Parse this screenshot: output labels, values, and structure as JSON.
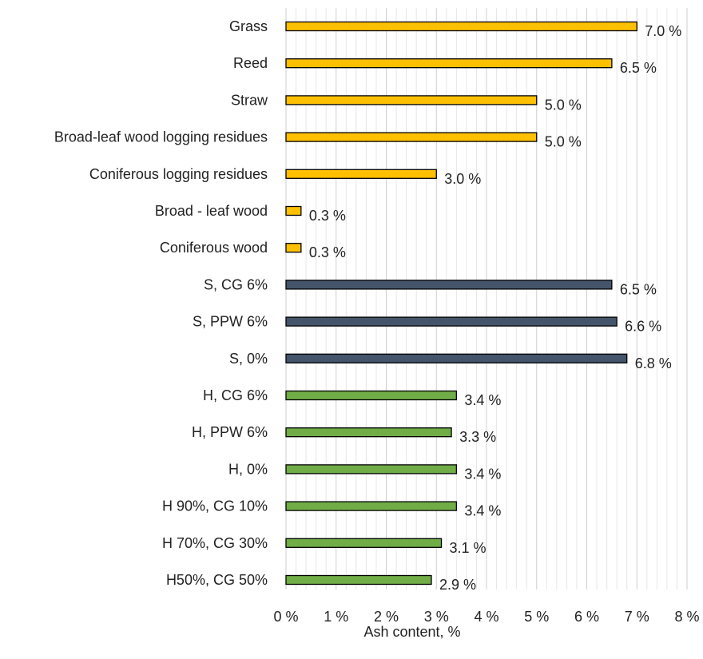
{
  "chart_data": {
    "type": "bar",
    "orientation": "horizontal",
    "xlabel": "Ash content, %",
    "xlim": [
      0,
      8
    ],
    "x_ticks": [
      "0 %",
      "1 %",
      "2 %",
      "3 %",
      "4 %",
      "5 %",
      "6 %",
      "7 %",
      "8 %"
    ],
    "grid": "vertical, minor and major",
    "categories": [
      "Grass",
      "Reed",
      "Straw",
      "Broad-leaf wood logging residues",
      "Coniferous logging residues",
      "Broad - leaf wood",
      "Coniferous wood",
      "S, CG 6%",
      "S, PPW 6%",
      "S, 0%",
      "H, CG 6%",
      "H, PPW 6%",
      "H, 0%",
      "H 90%, CG 10%",
      "H 70%, CG 30%",
      "H50%, CG 50%"
    ],
    "values": [
      7.0,
      6.5,
      5.0,
      5.0,
      3.0,
      0.3,
      0.3,
      6.5,
      6.6,
      6.8,
      3.4,
      3.3,
      3.4,
      3.4,
      3.1,
      2.9
    ],
    "value_labels": [
      "7.0 %",
      "6.5 %",
      "5.0 %",
      "5.0 %",
      "3.0 %",
      "0.3 %",
      "0.3 %",
      "6.5 %",
      "6.6 %",
      "6.8 %",
      "3.4 %",
      "3.3 %",
      "3.4 %",
      "3.4 %",
      "3.1 %",
      "2.9 %"
    ],
    "bar_colors": [
      "#ffc000",
      "#ffc000",
      "#ffc000",
      "#ffc000",
      "#ffc000",
      "#ffc000",
      "#ffc000",
      "#44546a",
      "#44546a",
      "#44546a",
      "#70ad47",
      "#70ad47",
      "#70ad47",
      "#70ad47",
      "#70ad47",
      "#70ad47"
    ],
    "bar_outline_color": "#000000",
    "grid_color": "#d9d9d9"
  }
}
